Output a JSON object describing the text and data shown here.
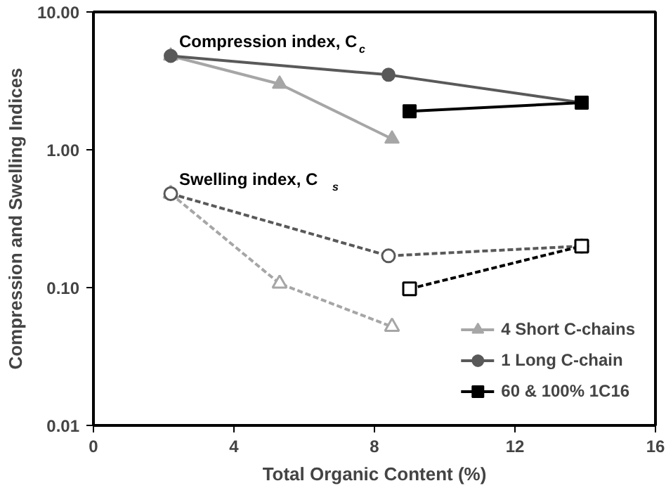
{
  "chart_data": {
    "type": "line",
    "xlabel": "Total Organic Content (%)",
    "ylabel": "Compression and Swelling Indices",
    "xlim": [
      0,
      16
    ],
    "xticks": [
      0,
      4,
      8,
      12,
      16
    ],
    "ylim": [
      0.01,
      10
    ],
    "yticks": [
      {
        "value": 0.01,
        "label": "0.01"
      },
      {
        "value": 0.1,
        "label": "0.10"
      },
      {
        "value": 1,
        "label": "1.00"
      },
      {
        "value": 10,
        "label": "10.00"
      }
    ],
    "log": "y",
    "grid": false,
    "legend": "bottom right",
    "series": [
      {
        "name": "4 Short C-chains",
        "color": "#a6a6a6",
        "marker": "triangle",
        "line_style": "solid",
        "x": [
          2.2,
          5.3,
          8.5
        ],
        "values": [
          4.8,
          3.0,
          1.2
        ]
      },
      {
        "name": "1 Long C-chain",
        "color": "#595959",
        "marker": "circle",
        "line_style": "solid",
        "x": [
          2.2,
          8.4,
          13.9
        ],
        "values": [
          4.8,
          3.5,
          2.2
        ]
      },
      {
        "name": "60 & 100% 1C16",
        "color": "#000000",
        "marker": "square",
        "line_style": "solid",
        "x": [
          9.0,
          13.9
        ],
        "values": [
          1.9,
          2.2
        ]
      },
      {
        "color": "#a6a6a6",
        "marker": "triangle",
        "line_style": "dashed",
        "x": [
          2.2,
          5.3,
          8.5
        ],
        "values": [
          0.48,
          0.107,
          0.052
        ]
      },
      {
        "color": "#595959",
        "marker": "circle",
        "line_style": "dashed",
        "x": [
          2.2,
          8.4,
          13.9
        ],
        "values": [
          0.48,
          0.17,
          0.2
        ]
      },
      {
        "color": "#000000",
        "marker": "square",
        "line_style": "dashed",
        "x": [
          9.0,
          13.9
        ],
        "values": [
          0.098,
          0.2
        ]
      }
    ],
    "annotations": [
      {
        "text": "Compression index, C$_{c}$",
        "x": 2.2,
        "y": 4.8
      },
      {
        "text": "Swelling index, C$_{s}$",
        "x": 2.2,
        "y": 0.48
      }
    ]
  }
}
